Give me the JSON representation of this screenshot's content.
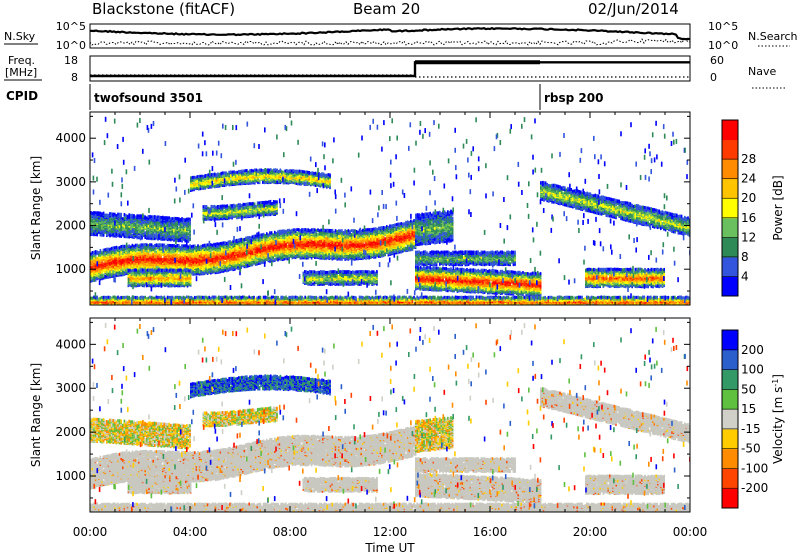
{
  "header": {
    "radar": "Blackstone (fitACF)",
    "beam": "Beam 20",
    "date": "02/Jun/2014"
  },
  "top_panels": {
    "nsky_label": "N.Sky",
    "nsky_ticks": [
      "10^5",
      "10^0"
    ],
    "nsearch_label": "N.Search",
    "nsearch_ticks": [
      "10^5",
      "10^0"
    ],
    "freq_label_1": "Freq.",
    "freq_label_2": "[MHz]",
    "freq_ticks": [
      "18",
      "8"
    ],
    "nave_label": "Nave",
    "nave_ticks": [
      "60",
      "0"
    ],
    "cpid_label": "CPID",
    "cpid_segments": [
      {
        "name": "twofsound 3501",
        "start_h": 0,
        "end_h": 18
      },
      {
        "name": "rbsp 200",
        "start_h": 18,
        "end_h": 24
      }
    ],
    "freq_segments": [
      {
        "start_h": 0,
        "end_h": 13,
        "mhz": 10
      },
      {
        "start_h": 13,
        "end_h": 24,
        "mhz": 15.5
      }
    ]
  },
  "colors": {
    "power": [
      "#0000ff",
      "#3355dd",
      "#2e8b57",
      "#6abf5f",
      "#ffff00",
      "#ffc400",
      "#ff8c00",
      "#ff3b00",
      "#ff0000"
    ],
    "velocity": [
      "#0000ff",
      "#2b5fcc",
      "#339966",
      "#5fbf3f",
      "#d0d0c8",
      "#ffcc00",
      "#ff8c00",
      "#ff4500",
      "#ff0000"
    ],
    "ground_scatter": "#c8c8c0"
  },
  "chart_data": [
    {
      "type": "heatmap",
      "panel": "power",
      "ylabel": "Slant Range [km]",
      "xlabel": "",
      "xlim": [
        "00:00",
        "24:00"
      ],
      "ylim": [
        180,
        4600
      ],
      "yticks": [
        1000,
        2000,
        3000,
        4000
      ],
      "colorbar": {
        "label": "Power [dB]",
        "ticks": [
          4,
          8,
          12,
          16,
          20,
          24,
          28
        ],
        "range": [
          0,
          32
        ]
      }
    },
    {
      "type": "heatmap",
      "panel": "velocity",
      "ylabel": "Slant Range [km]",
      "xlabel": "Time UT",
      "xlim": [
        "00:00",
        "24:00"
      ],
      "ylim": [
        180,
        4600
      ],
      "yticks": [
        1000,
        2000,
        3000,
        4000
      ],
      "xticks": [
        "00:00",
        "04:00",
        "08:00",
        "12:00",
        "16:00",
        "20:00",
        "00:00"
      ],
      "colorbar": {
        "label": "Velocity [m s",
        "label_sup": "-1",
        "label_end": "]",
        "ticks": [
          200,
          100,
          50,
          15,
          -15,
          -50,
          -100,
          -200
        ]
      }
    }
  ]
}
